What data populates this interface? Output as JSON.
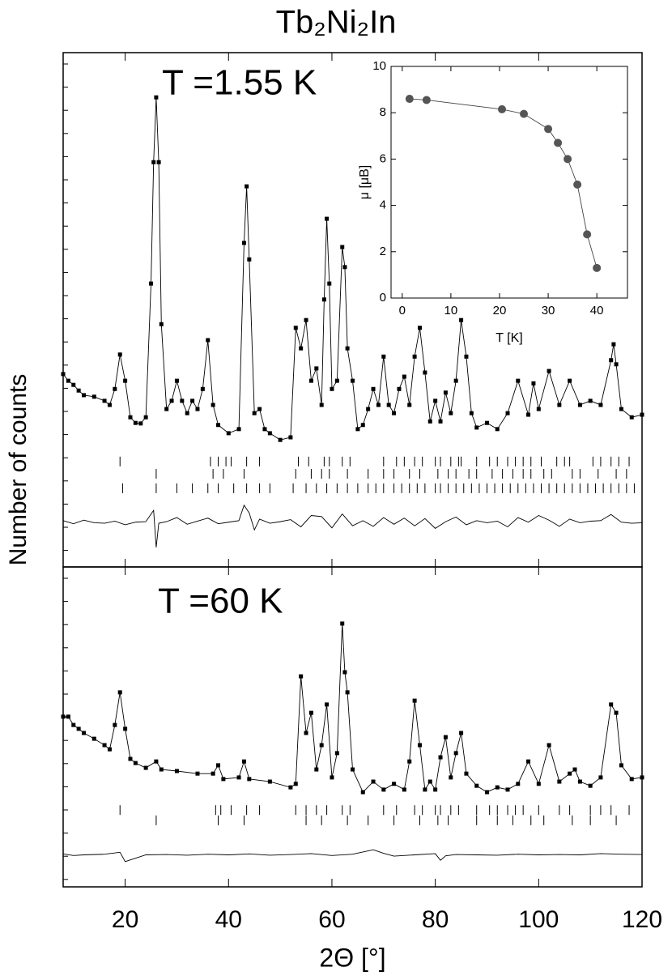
{
  "chart_data": [
    {
      "type": "line",
      "title": "Tb₂Ni₂In",
      "y_label": "Number of counts",
      "annotation": "T =1.55 K",
      "xlim": [
        8,
        120
      ],
      "ylim": [
        0,
        100
      ],
      "x": [
        8,
        9,
        10,
        11,
        12,
        14,
        16,
        17,
        18,
        19,
        20,
        21,
        22,
        23,
        24,
        25,
        25.5,
        26,
        26.5,
        27,
        28,
        29,
        30,
        31,
        32,
        33,
        34,
        35,
        36,
        37,
        38,
        40,
        42,
        43,
        43.5,
        44,
        45,
        46,
        47,
        48,
        50,
        52,
        53,
        54,
        55,
        56,
        57,
        58,
        58.5,
        59,
        59.5,
        60,
        61,
        62,
        62.5,
        63,
        64,
        65,
        66,
        67,
        68,
        69,
        70,
        71,
        72,
        73,
        74,
        75,
        76,
        77,
        78,
        79,
        80,
        81,
        82,
        83,
        84,
        85,
        86,
        87,
        88,
        90,
        92,
        94,
        96,
        98,
        99,
        100,
        102,
        104,
        106,
        108,
        110,
        112,
        114,
        114.5,
        115,
        116,
        118,
        120
      ],
      "series": [
        {
          "color": "#000000",
          "marker": "square",
          "values": [
            37.5,
            36.2,
            35.4,
            34.3,
            33.4,
            33.1,
            32.3,
            31.5,
            34.6,
            41.3,
            36.2,
            29.1,
            28.0,
            27.9,
            29.1,
            55.1,
            78.7,
            91.3,
            78.7,
            47.2,
            30.7,
            32.3,
            36.2,
            32.3,
            29.9,
            32.3,
            30.7,
            34.6,
            44.1,
            31.5,
            27.6,
            26.0,
            26.8,
            63.0,
            74.0,
            59.8,
            29.9,
            30.7,
            26.8,
            26.0,
            24.7,
            25.2,
            46.5,
            42.5,
            48.0,
            36.2,
            38.6,
            31.5,
            52.0,
            67.7,
            55.1,
            34.6,
            36.2,
            62.2,
            58.3,
            42.5,
            36.2,
            26.8,
            27.6,
            30.7,
            34.6,
            31.5,
            40.9,
            31.5,
            29.9,
            34.6,
            37.0,
            31.5,
            40.9,
            46.5,
            37.8,
            28.3,
            32.3,
            28.3,
            33.9,
            29.9,
            36.2,
            48.0,
            40.9,
            29.9,
            27.1,
            28.0,
            26.8,
            29.9,
            36.2,
            29.6,
            35.7,
            30.7,
            38.1,
            31.5,
            36.2,
            31.5,
            32.3,
            31.5,
            40.2,
            43.3,
            39.4,
            30.7,
            29.1,
            29.6
          ]
        },
        {
          "color": "#000000",
          "values": [
            37.5,
            36.2,
            35.4,
            34.3,
            33.4,
            33.1,
            32.3,
            31.5,
            34.6,
            41.3,
            36.2,
            29.1,
            28.0,
            27.9,
            29.1,
            55.1,
            78.7,
            91.3,
            78.7,
            47.2,
            30.7,
            32.3,
            36.2,
            32.3,
            29.9,
            32.3,
            30.7,
            34.6,
            44.1,
            31.5,
            27.6,
            26.0,
            26.8,
            63.0,
            74.0,
            59.8,
            29.9,
            30.7,
            26.8,
            26.0,
            24.7,
            25.2,
            46.5,
            42.5,
            48.0,
            36.2,
            38.6,
            31.5,
            52.0,
            67.7,
            55.1,
            34.6,
            36.2,
            62.2,
            58.3,
            42.5,
            36.2,
            26.8,
            27.6,
            30.7,
            34.6,
            31.5,
            40.9,
            31.5,
            29.9,
            34.6,
            37.0,
            31.5,
            40.9,
            46.5,
            37.8,
            28.3,
            32.3,
            28.3,
            33.9,
            29.9,
            36.2,
            48.0,
            40.9,
            29.9,
            27.1,
            28.0,
            26.8,
            29.9,
            36.2,
            29.6,
            35.7,
            30.7,
            38.1,
            31.5,
            36.2,
            31.5,
            32.3,
            31.5,
            40.2,
            43.3,
            39.4,
            30.7,
            29.1,
            29.6
          ]
        },
        {
          "color": "#000000",
          "x": [
            8,
            10,
            12,
            14,
            16,
            18,
            20,
            22,
            24,
            25.5,
            26,
            26.5,
            28,
            30,
            32,
            34,
            36,
            38,
            40,
            42,
            43,
            44,
            45,
            46,
            48,
            50,
            52,
            54,
            56,
            58,
            60,
            62,
            64,
            66,
            68,
            70,
            72,
            74,
            76,
            78,
            80,
            82,
            84,
            86,
            88,
            90,
            92,
            94,
            96,
            98,
            100,
            102,
            104,
            106,
            108,
            110,
            112,
            114,
            116,
            118,
            120
          ],
          "values": [
            9.0,
            8.4,
            9.1,
            8.6,
            8.5,
            8.9,
            8.2,
            8.7,
            8.8,
            11.0,
            3.8,
            8.5,
            8.8,
            9.6,
            8.3,
            8.9,
            9.5,
            8.4,
            8.7,
            9.0,
            12.0,
            10.5,
            7.2,
            9.3,
            8.5,
            8.8,
            9.2,
            7.8,
            10.0,
            9.8,
            7.6,
            10.3,
            8.0,
            9.0,
            7.9,
            9.6,
            8.3,
            9.5,
            8.0,
            9.4,
            7.5,
            8.8,
            9.7,
            8.2,
            9.0,
            8.6,
            8.9,
            7.8,
            9.6,
            8.7,
            10.0,
            9.1,
            7.9,
            9.3,
            8.6,
            8.9,
            9.0,
            10.2,
            8.7,
            8.5,
            8.6
          ]
        }
      ],
      "reflections": [
        [
          19,
          36.5,
          38,
          39.5,
          40.5,
          43.5,
          46,
          53.5,
          55.5,
          58.5,
          59.5,
          62,
          63.5,
          70,
          72.5,
          74,
          76,
          77.5,
          80,
          81,
          83,
          84.5,
          85,
          88,
          90.5,
          92,
          94,
          95.5,
          97,
          98.5,
          100.5,
          103.5,
          105,
          106,
          110.5,
          112,
          114,
          115.5,
          117.5
        ],
        [
          26,
          37,
          39,
          43,
          53,
          56,
          58,
          59.5,
          63,
          67,
          70,
          72,
          75,
          77,
          80.5,
          82.5,
          84,
          86.5,
          88,
          91,
          93,
          95,
          97,
          98.5,
          101,
          102.5,
          106.5,
          108,
          111.5,
          115,
          117
        ],
        [
          19.5,
          26,
          30,
          33,
          36,
          38,
          41,
          43.5,
          46,
          48,
          52.5,
          55,
          57,
          59,
          61,
          63,
          65,
          67,
          68.5,
          70,
          72,
          73.5,
          75,
          76.5,
          78,
          80,
          81,
          82.5,
          84,
          85.5,
          87,
          88.5,
          90,
          91.5,
          93,
          94.5,
          96,
          97.5,
          99,
          100.5,
          102,
          103.5,
          105,
          106.5,
          108,
          109.5,
          111,
          112.5,
          114,
          115.5,
          117,
          118.5
        ]
      ]
    },
    {
      "type": "line",
      "annotation": "T =60 K",
      "x_label": "2Θ [°]",
      "xlim": [
        8,
        120
      ],
      "xticks": [
        20,
        40,
        60,
        80,
        100,
        120
      ],
      "ylim": [
        0,
        100
      ],
      "x": [
        8,
        9,
        10,
        11,
        12,
        14,
        16,
        17,
        18,
        19,
        20,
        21,
        22,
        24,
        26,
        27,
        30,
        34,
        37,
        38,
        39,
        42,
        43,
        44,
        48,
        52,
        53,
        54,
        55,
        56,
        57,
        58,
        59,
        60,
        61,
        62,
        62.5,
        63,
        64,
        66,
        68,
        70,
        72,
        74,
        75,
        76,
        77,
        78,
        79,
        80,
        81,
        82,
        83,
        84,
        85,
        86,
        88,
        90,
        92,
        94,
        96,
        98,
        100,
        102,
        104,
        106,
        107,
        108,
        110,
        112,
        114,
        115,
        116,
        118,
        120
      ],
      "series": [
        {
          "color": "#000000",
          "marker": "square",
          "values": [
            53.2,
            53.2,
            50.6,
            49.4,
            48.1,
            46.3,
            44.3,
            43.0,
            50.6,
            60.8,
            49.4,
            40.0,
            38.7,
            37.2,
            39.2,
            36.7,
            36.2,
            35.4,
            35.4,
            38.0,
            33.7,
            34.2,
            39.2,
            33.7,
            32.9,
            31.1,
            32.2,
            65.8,
            48.1,
            54.4,
            36.7,
            44.3,
            57.0,
            34.2,
            41.8,
            82.3,
            67.1,
            60.8,
            36.7,
            29.6,
            32.9,
            30.4,
            32.2,
            30.4,
            39.2,
            58.2,
            44.3,
            30.4,
            32.9,
            30.4,
            40.5,
            46.8,
            34.2,
            41.8,
            48.1,
            35.4,
            31.6,
            29.6,
            31.1,
            30.4,
            32.2,
            39.2,
            32.2,
            44.3,
            32.9,
            35.4,
            36.7,
            32.9,
            31.6,
            34.2,
            57.0,
            54.4,
            38.0,
            33.7,
            34.2
          ]
        },
        {
          "color": "#000000",
          "values": [
            53.2,
            53.2,
            50.6,
            49.4,
            48.1,
            46.3,
            44.3,
            43.0,
            50.6,
            60.8,
            49.4,
            40.0,
            38.7,
            37.2,
            39.2,
            36.7,
            36.2,
            35.4,
            35.4,
            38.0,
            33.7,
            34.2,
            39.2,
            33.7,
            32.9,
            31.1,
            32.2,
            65.8,
            48.1,
            54.4,
            36.7,
            44.3,
            57.0,
            34.2,
            41.8,
            82.3,
            67.1,
            60.8,
            36.7,
            29.6,
            32.9,
            30.4,
            32.2,
            30.4,
            39.2,
            58.2,
            44.3,
            30.4,
            32.9,
            30.4,
            40.5,
            46.8,
            34.2,
            41.8,
            48.1,
            35.4,
            31.6,
            29.6,
            31.1,
            30.4,
            32.2,
            39.2,
            32.2,
            44.3,
            32.9,
            35.4,
            36.7,
            32.9,
            31.6,
            34.2,
            57.0,
            54.4,
            38.0,
            33.7,
            34.2
          ]
        },
        {
          "color": "#000000",
          "x": [
            8,
            10,
            12,
            16,
            19,
            20,
            24,
            28,
            32,
            36,
            40,
            44,
            48,
            52,
            56,
            60,
            64,
            68,
            70,
            72,
            76,
            80,
            81,
            82,
            84,
            88,
            92,
            96,
            100,
            104,
            108,
            112,
            116,
            120
          ],
          "values": [
            10.3,
            9.8,
            10.0,
            10.2,
            10.8,
            7.9,
            10.0,
            10.1,
            9.9,
            10.2,
            10.0,
            10.3,
            9.9,
            10.1,
            10.4,
            9.8,
            10.2,
            11.6,
            10.5,
            9.6,
            10.0,
            10.4,
            8.3,
            9.7,
            10.1,
            10.0,
            9.9,
            10.2,
            10.0,
            10.1,
            10.0,
            10.4,
            10.2,
            10.1
          ]
        }
      ],
      "reflections": [
        [
          19,
          37.5,
          38.5,
          40.5,
          43.5,
          46,
          53,
          55,
          57,
          59,
          62,
          63.5,
          70,
          72.5,
          76,
          77.5,
          80,
          81,
          83,
          84.5,
          88,
          90.5,
          92,
          94,
          95.5,
          97,
          100,
          104,
          106,
          110,
          112,
          114,
          117.5
        ],
        [
          26,
          38,
          43,
          55,
          58,
          63,
          67,
          72,
          77,
          80.5,
          82.5,
          88,
          92,
          95,
          98.5,
          101,
          106.5,
          110,
          115
        ]
      ]
    },
    {
      "type": "scatter",
      "x_label": "T [K]",
      "y_label": "μ [μB]",
      "xlim": [
        -2.3,
        46.3
      ],
      "xticks": [
        0,
        10,
        20,
        30,
        40
      ],
      "ylim": [
        0,
        10
      ],
      "yticks": [
        0,
        2,
        4,
        6,
        8,
        10
      ],
      "x": [
        1.5,
        5,
        20.5,
        25,
        30,
        32,
        34,
        36,
        38,
        40
      ],
      "values": [
        8.6,
        8.55,
        8.15,
        7.95,
        7.3,
        6.7,
        6.0,
        4.9,
        2.75,
        1.3
      ],
      "color": "#555555",
      "line": true
    }
  ]
}
